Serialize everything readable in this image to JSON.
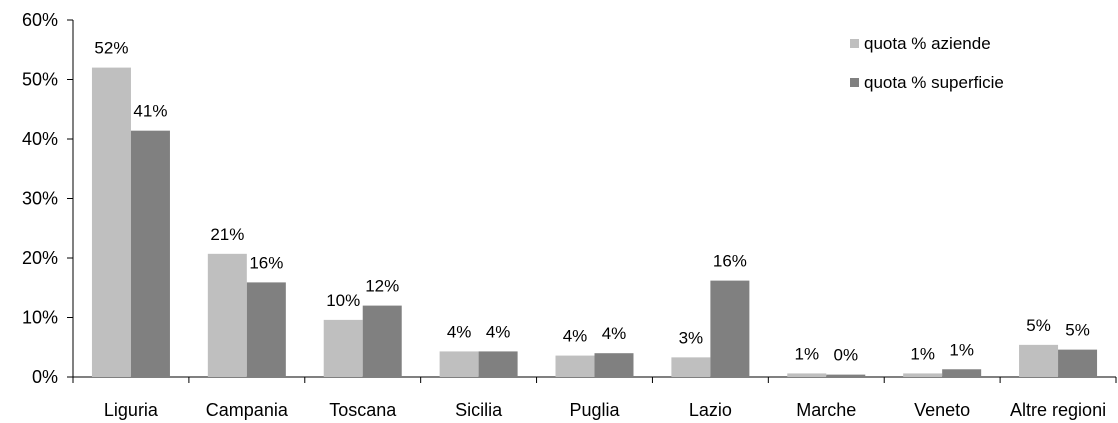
{
  "chart_data": {
    "type": "bar",
    "categories": [
      "Liguria",
      "Campania",
      "Toscana",
      "Sicilia",
      "Puglia",
      "Lazio",
      "Marche",
      "Veneto",
      "Altre regioni"
    ],
    "series": [
      {
        "name": "quota % aziende",
        "values": [
          52,
          20.7,
          9.6,
          4.3,
          3.6,
          3.3,
          0.6,
          0.6,
          5.4
        ],
        "labels": [
          "52%",
          "21%",
          "10%",
          "4%",
          "4%",
          "3%",
          "1%",
          "1%",
          "5%"
        ],
        "color": "#bfbfbf"
      },
      {
        "name": "quota % superficie",
        "values": [
          41.4,
          15.9,
          12.0,
          4.3,
          4.0,
          16.2,
          0.4,
          1.3,
          4.6
        ],
        "labels": [
          "41%",
          "16%",
          "12%",
          "4%",
          "4%",
          "16%",
          "0%",
          "1%",
          "5%"
        ],
        "color": "#808080"
      }
    ],
    "ylim": [
      0,
      60
    ],
    "yticks": [
      "0%",
      "10%",
      "20%",
      "30%",
      "40%",
      "50%",
      "60%"
    ],
    "ytick_values": [
      0,
      10,
      20,
      30,
      40,
      50,
      60
    ],
    "legend_position": "top-right",
    "grid": false
  }
}
